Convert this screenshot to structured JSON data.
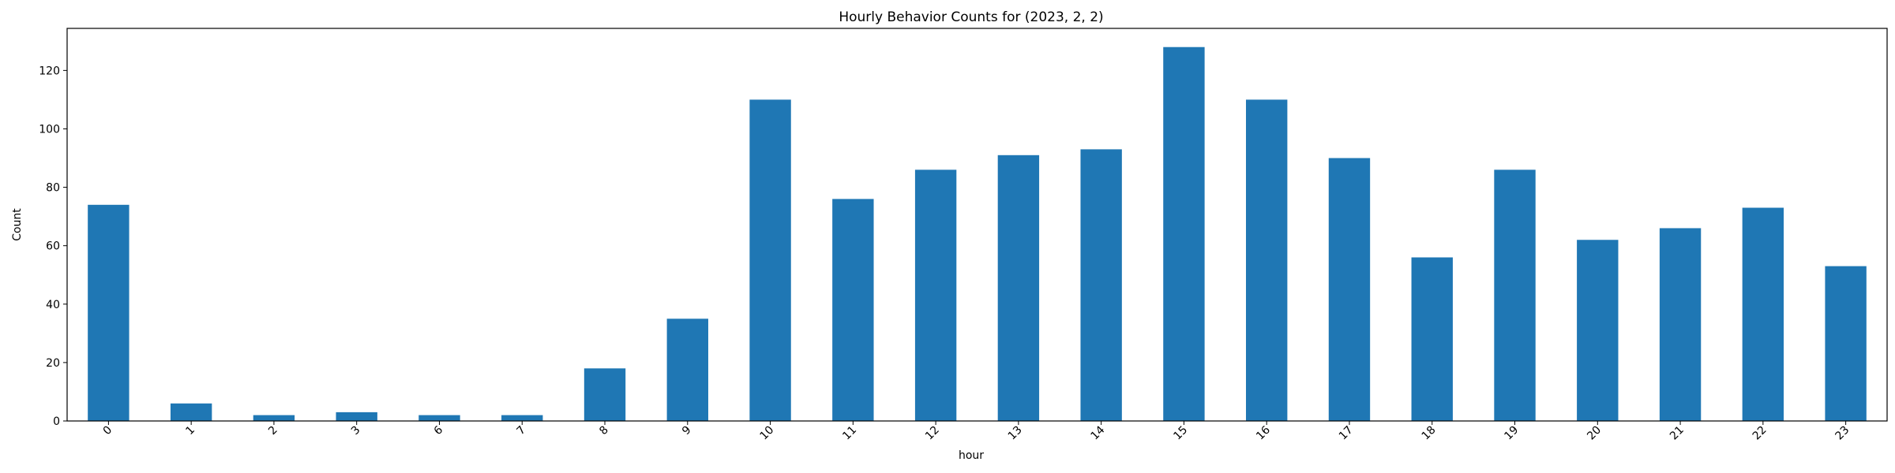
{
  "chart_data": {
    "type": "bar",
    "title": "Hourly Behavior Counts for (2023, 2, 2)",
    "xlabel": "hour",
    "ylabel": "Count",
    "categories": [
      "0",
      "1",
      "2",
      "3",
      "6",
      "7",
      "8",
      "9",
      "10",
      "11",
      "12",
      "13",
      "14",
      "15",
      "16",
      "17",
      "18",
      "19",
      "20",
      "21",
      "22",
      "23"
    ],
    "values": [
      74,
      6,
      2,
      3,
      2,
      2,
      18,
      35,
      110,
      76,
      86,
      91,
      93,
      128,
      110,
      90,
      56,
      86,
      62,
      66,
      73,
      53
    ],
    "ylim": [
      0,
      134.4
    ],
    "yticks": [
      0,
      20,
      40,
      60,
      80,
      100,
      120
    ],
    "xtick_rotation": 45,
    "bar_color": "#1f77b4",
    "grid": false,
    "legend": "none"
  }
}
